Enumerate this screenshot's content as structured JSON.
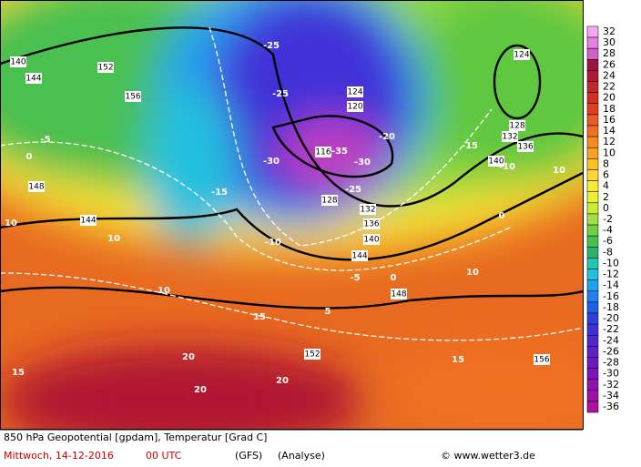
{
  "map": {
    "title": "850 hPa Geopotential [gpdam], Temperatur [Grad C]",
    "date": "Mittwoch, 14-12-2016",
    "time": "00 UTC",
    "model": "(GFS)",
    "run": "(Analyse)",
    "credit": "© www.wetter3.de",
    "colorbar": {
      "labels": [
        32,
        30,
        28,
        26,
        24,
        22,
        20,
        18,
        16,
        14,
        12,
        10,
        8,
        6,
        4,
        2,
        0,
        -2,
        -4,
        -6,
        -8,
        -10,
        -12,
        -14,
        -16,
        -18,
        -20,
        -22,
        -24,
        -26,
        -28,
        -30,
        -32,
        -34,
        -36
      ],
      "colors": [
        "#f4a6f0",
        "#e680e0",
        "#d060c8",
        "#a01040",
        "#b01830",
        "#c02828",
        "#d03020",
        "#e04020",
        "#e85a20",
        "#f07020",
        "#f48a20",
        "#f8a020",
        "#fcc020",
        "#fcd830",
        "#f8ec30",
        "#e8f030",
        "#c8ec30",
        "#9ee040",
        "#70d040",
        "#48c050",
        "#30b070",
        "#20c8b0",
        "#20c0e0",
        "#20a0f0",
        "#2080f0",
        "#2060e8",
        "#3040e0",
        "#4030d8",
        "#5028d0",
        "#6020c8",
        "#7018c0",
        "#8010b8",
        "#9010b0",
        "#a010a8",
        "#b010a0"
      ]
    },
    "temperature_labels": [
      "-25",
      "-25",
      "-35",
      "-30",
      "-30",
      "-25",
      "-20",
      "-15",
      "-10",
      "10",
      "0",
      "10",
      "15",
      "-5",
      "0",
      "10",
      "10",
      "10",
      "15",
      "20",
      "20",
      "15",
      "20",
      "-15",
      "-10",
      "-5",
      "0",
      "5"
    ],
    "height_labels": [
      "144",
      "140",
      "152",
      "156",
      "148",
      "144",
      "124",
      "120",
      "116",
      "128",
      "132",
      "136",
      "140",
      "144",
      "148",
      "152",
      "156",
      "124",
      "128",
      "132",
      "136",
      "140"
    ]
  }
}
